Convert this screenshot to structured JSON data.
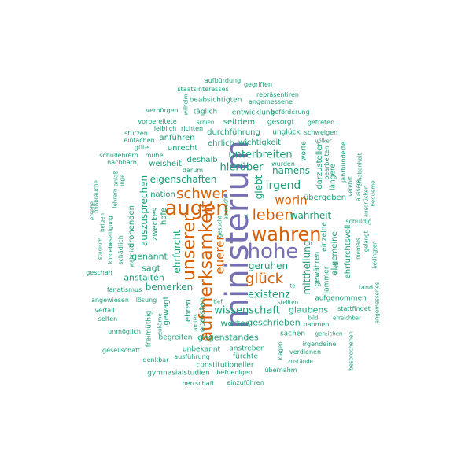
{
  "colors": {
    "teal": "#1b9e77",
    "orange": "#d95f02",
    "purple": "#7570b3"
  },
  "words": {
    "ministerium": "ministerium",
    "hohe": "hohe",
    "wahren": "wahren",
    "augen": "augen",
    "aufmerksamkeit": "aufmerksamkeit",
    "unserer": "unserer",
    "leben": "leben",
    "schwer": "schwer",
    "gluck": "glück",
    "worin": "worin",
    "euerer": "euerer",
    "irgend": "irgend",
    "wissenschaft": "wissenschaft",
    "existenz": "existenz",
    "unterbreiten": "unterbreiten",
    "hieruber": "hierüber",
    "namens": "namens",
    "eigenschaften": "eigenschaften",
    "auszusprechen": "auszusprechen",
    "ehrfurcht": "ehrfurcht",
    "giebt": "giebt",
    "wahrheit": "wahrheit",
    "geruhen": "geruhen",
    "mittheilung": "mittheilung",
    "bemerken": "bemerken",
    "genannt": "genannt",
    "sagt": "sagt",
    "anstalten": "anstalten",
    "wortes": "wortes",
    "geschrieben": "geschrieben",
    "gegenstandes": "gegenstandes",
    "glaubens": "glaubens",
    "aufburdung": "aufbürdung",
    "gegriffen": "gegriffen",
    "staatsinteresses": "staatsinteresses",
    "reprasentiren": "repräsentiren",
    "wilhelm": "wilhelm",
    "beabsichtigten": "beabsichtigten",
    "angemessene": "angemessene",
    "verburgen": "verbürgen",
    "taglich": "täglich",
    "entwicklung": "entwicklung",
    "beforderung": "beförderung",
    "vorbereitete": "vorbereitete",
    "schien": "schien",
    "seitdem": "seitdem",
    "gesorgt": "gesorgt",
    "getreten": "getreten",
    "leiblich": "leiblich",
    "richten": "richten",
    "durchfuhrung": "durchführung",
    "ungluck": "unglück",
    "schweigen": "schweigen",
    "stutzen": "stützen",
    "ehrlich": "ehrlich",
    "wichtigkeit": "wichtigkeit",
    "einfachen": "einfachen",
    "anfuhren": "anführen",
    "gute": "güte",
    "unrecht": "unrecht",
    "worte": "worte",
    "schullehrern": "schullehrern",
    "muhe": "mühe",
    "nachbarn": "nachbarn",
    "weisheit": "weisheit",
    "deshalb": "deshalb",
    "wurden": "wurden",
    "volker": "völker",
    "darum": "darum",
    "darzustellen": "darzustellen",
    "bearbeiten": "bearbeiten",
    "jahrhunderte": "jahrhunderte",
    "erhabenheit": "erhabenheit",
    "anlass": "anlaß",
    "inge": "inge",
    "langere": "längere",
    "verehrt": "verehrt",
    "aussere": "äussere",
    "missbrauche": "mißbräuche",
    "lehrern": "lehrern",
    "ubergeben": "übergeben",
    "bequeme": "bequeme",
    "ersehe": "ersehe",
    "ausdrucken": "ausdrücken",
    "nation": "nation",
    "zweckes": "zweckes",
    "hofe": "hofe",
    "abbruch": "abbruch",
    "schuldig": "schuldig",
    "beigen": "beigen",
    "beseitigung": "beseitigung",
    "drohenden": "drohenden",
    "gelangt": "gelangt",
    "einzelne": "einzelne",
    "studium": "studium",
    "schadlich": "schädlich",
    "gesucht": "gesucht",
    "allgemeine": "allgemeine",
    "ehrfurchtsvoll": "ehrfurchtsvoll",
    "niemals": "niemals",
    "bedingten": "bedingten",
    "kindern": "kindern",
    "wahrlich": "wahrlich",
    "gewahren": "gewähren",
    "jammer": "jammer",
    "geschah": "geschah",
    "hielt": "hielt",
    "fanatismus": "fanatismus",
    "te": "te",
    "tand": "tand",
    "angewiesen": "angewiesen",
    "losung": "lösung",
    "stellten": "stellten",
    "aufgenommen": "aufgenommen",
    "angemessenes": "angemessenes",
    "verfall": "verfall",
    "gewagt": "gewagt",
    "tief": "tief",
    "stattfindet": "stattfindet",
    "selten": "selten",
    "lehren": "lehren",
    "amtes": "amtes",
    "obersten": "obersten",
    "bild": "bild",
    "erreichbar": "erreichbar",
    "unmoglich": "unmöglich",
    "freimuthig": "freimüthig",
    "zukame": "zukäme",
    "begreifen": "begreifen",
    "sachen": "sachen",
    "gereichen": "gereichen",
    "irgendeine": "irgendeine",
    "besprochenen": "besprochenen",
    "gesellschaft": "gesellschaft",
    "unbekannt": "unbekannt",
    "anstreben": "anstreben",
    "klagen": "klagen",
    "verdienen": "verdienen",
    "denkbar": "denkbar",
    "ausfuhrung": "ausführung",
    "furchte": "fürchte",
    "zustande": "zustände",
    "constitutioneller": "constitutioneller",
    "gymnasialstudien": "gymnasialstudien",
    "befriedigen": "befriedigen",
    "ubernahm": "übernahm",
    "herrschaft": "herrschaft",
    "einzufuhren": "einzuführen",
    "nahmen": "nahmen",
    "d": "d"
  }
}
